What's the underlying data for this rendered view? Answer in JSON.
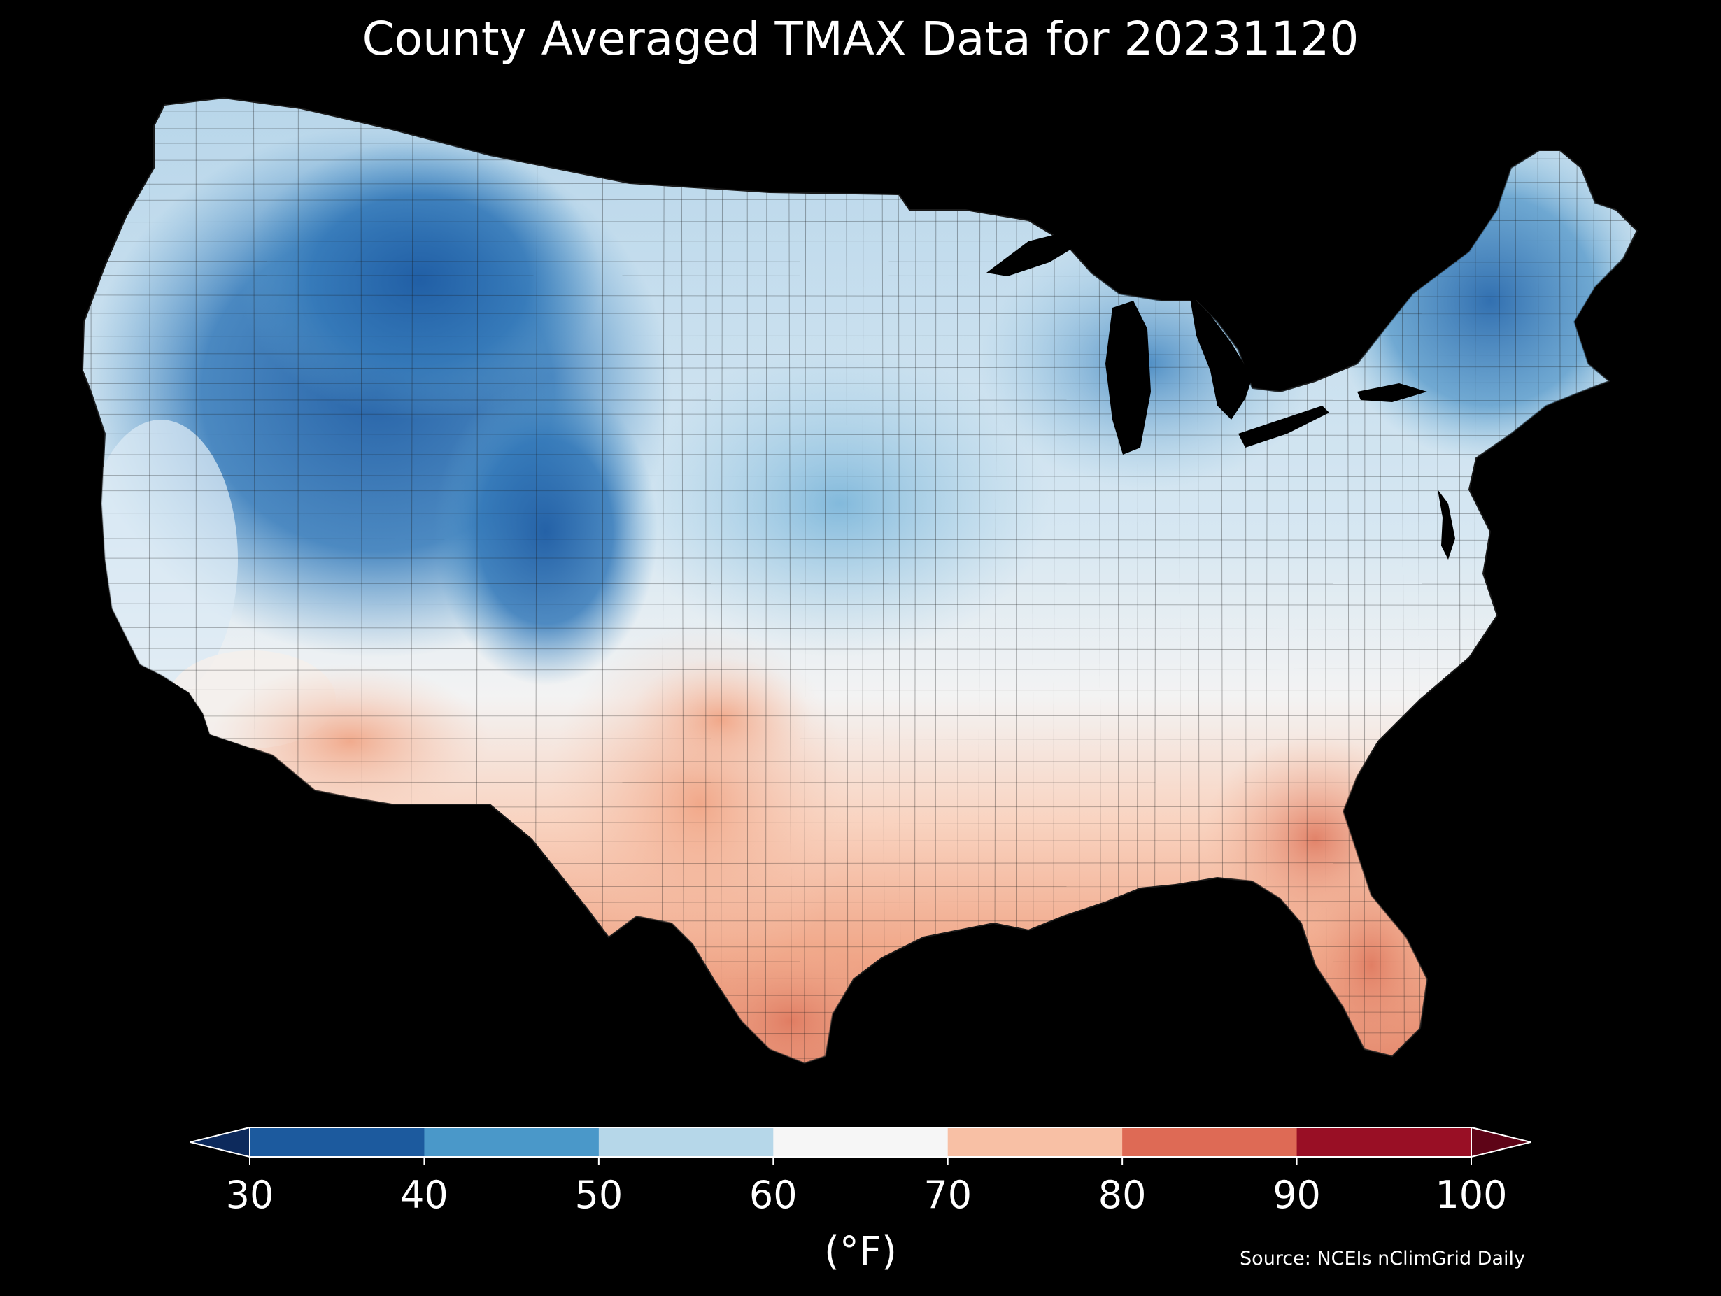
{
  "title": "County Averaged TMAX Data for 20231120",
  "source": "Source: NCEIs nClimGrid Daily",
  "colorbar": {
    "unit_label": "(°F)",
    "ticks": [
      "30",
      "40",
      "50",
      "60",
      "70",
      "80",
      "90",
      "100"
    ],
    "bins": [
      {
        "range": [
          30,
          40
        ],
        "color": "#1c5a9e"
      },
      {
        "range": [
          40,
          50
        ],
        "color": "#4a98c9"
      },
      {
        "range": [
          50,
          60
        ],
        "color": "#b6d7e9"
      },
      {
        "range": [
          60,
          70
        ],
        "color": "#f6f6f6"
      },
      {
        "range": [
          70,
          80
        ],
        "color": "#f8c0a5"
      },
      {
        "range": [
          80,
          90
        ],
        "color": "#de6a55"
      },
      {
        "range": [
          90,
          100
        ],
        "color": "#990f25"
      }
    ],
    "under_color": "#0d2a5c",
    "over_color": "#5e0417"
  },
  "map": {
    "background_color": "#000000",
    "description_colors": {
      "cold": "#2e6fae",
      "cool": "#8cc0de",
      "mild": "#dbeaf4",
      "warm": "#f6c7ae",
      "hot": "#e07f63"
    }
  }
}
